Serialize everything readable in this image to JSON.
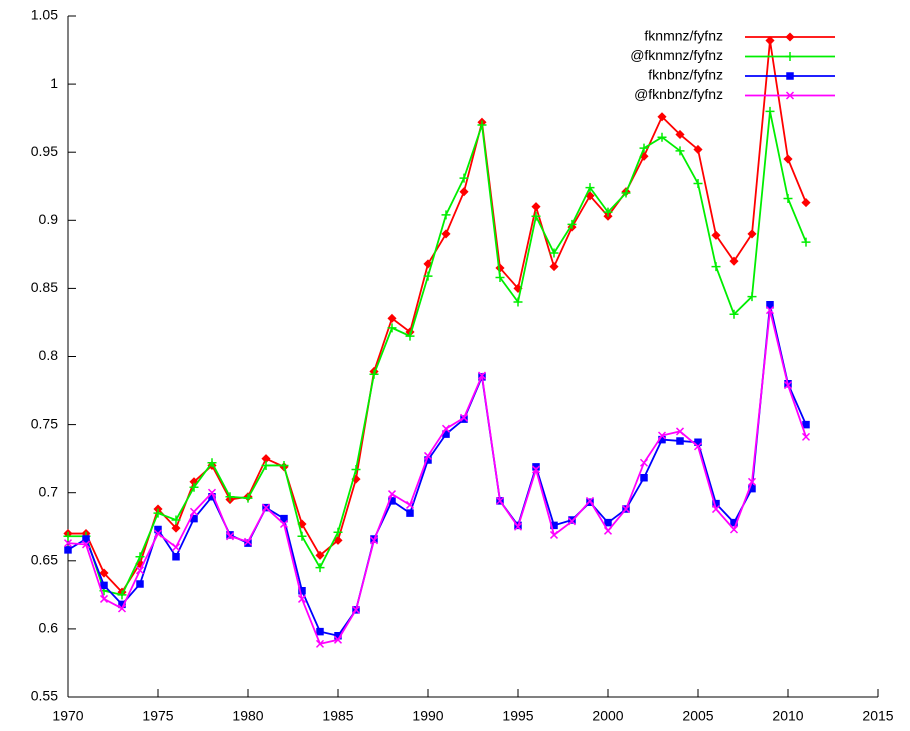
{
  "chart_data": {
    "type": "line",
    "x": [
      1970,
      1971,
      1972,
      1973,
      1974,
      1975,
      1976,
      1977,
      1978,
      1979,
      1980,
      1981,
      1982,
      1983,
      1984,
      1985,
      1986,
      1987,
      1988,
      1989,
      1990,
      1991,
      1992,
      1993,
      1994,
      1995,
      1996,
      1997,
      1998,
      1999,
      2000,
      2001,
      2002,
      2003,
      2004,
      2005,
      2006,
      2007,
      2008,
      2009,
      2010,
      2011
    ],
    "series": [
      {
        "name": "fknmnz/fyfnz",
        "color": "#ff0000",
        "marker": "diamond",
        "values": [
          0.67,
          0.67,
          0.641,
          0.627,
          0.648,
          0.688,
          0.674,
          0.708,
          0.72,
          0.695,
          0.697,
          0.725,
          0.719,
          0.677,
          0.654,
          0.665,
          0.71,
          0.789,
          0.828,
          0.818,
          0.868,
          0.89,
          0.921,
          0.972,
          0.865,
          0.85,
          0.91,
          0.866,
          0.895,
          0.918,
          0.903,
          0.921,
          0.947,
          0.976,
          0.963,
          0.952,
          0.889,
          0.87,
          0.89,
          1.032,
          0.945,
          0.913
        ]
      },
      {
        "name": "@fknmnz/fyfnz",
        "color": "#00ee00",
        "marker": "plus",
        "values": [
          0.668,
          0.668,
          0.628,
          0.625,
          0.653,
          0.685,
          0.68,
          0.704,
          0.722,
          0.697,
          0.696,
          0.72,
          0.72,
          0.668,
          0.645,
          0.671,
          0.717,
          0.787,
          0.821,
          0.815,
          0.859,
          0.904,
          0.931,
          0.97,
          0.858,
          0.84,
          0.903,
          0.876,
          0.897,
          0.924,
          0.906,
          0.92,
          0.953,
          0.961,
          0.951,
          0.927,
          0.866,
          0.831,
          0.844,
          0.98,
          0.916,
          0.884
        ]
      },
      {
        "name": "fknbnz/fyfnz",
        "color": "#0000ff",
        "marker": "square",
        "values": [
          0.658,
          0.666,
          0.632,
          0.618,
          0.633,
          0.673,
          0.653,
          0.681,
          0.697,
          0.669,
          0.663,
          0.689,
          0.681,
          0.628,
          0.598,
          0.595,
          0.614,
          0.666,
          0.694,
          0.685,
          0.724,
          0.743,
          0.754,
          0.785,
          0.694,
          0.676,
          0.719,
          0.676,
          0.68,
          0.693,
          0.678,
          0.688,
          0.711,
          0.739,
          0.738,
          0.737,
          0.692,
          0.678,
          0.703,
          0.838,
          0.78,
          0.75
        ]
      },
      {
        "name": "@fknbnz/fyfnz",
        "color": "#ff00ff",
        "marker": "cross",
        "values": [
          0.663,
          0.662,
          0.622,
          0.615,
          0.643,
          0.67,
          0.66,
          0.686,
          0.7,
          0.668,
          0.664,
          0.689,
          0.677,
          0.622,
          0.589,
          0.592,
          0.614,
          0.665,
          0.699,
          0.691,
          0.727,
          0.747,
          0.755,
          0.786,
          0.694,
          0.675,
          0.717,
          0.669,
          0.679,
          0.694,
          0.672,
          0.688,
          0.722,
          0.742,
          0.745,
          0.734,
          0.688,
          0.673,
          0.708,
          0.834,
          0.779,
          0.741
        ]
      }
    ],
    "xlim": [
      1970,
      2015
    ],
    "xticks": [
      1970,
      1975,
      1980,
      1985,
      1990,
      1995,
      2000,
      2005,
      2010,
      2015
    ],
    "ylim": [
      0.55,
      1.05
    ],
    "yticks": [
      0.55,
      0.6,
      0.65,
      0.7,
      0.75,
      0.8,
      0.85,
      0.9,
      0.95,
      1,
      1.05
    ],
    "grid": false,
    "legend": "top-right"
  }
}
